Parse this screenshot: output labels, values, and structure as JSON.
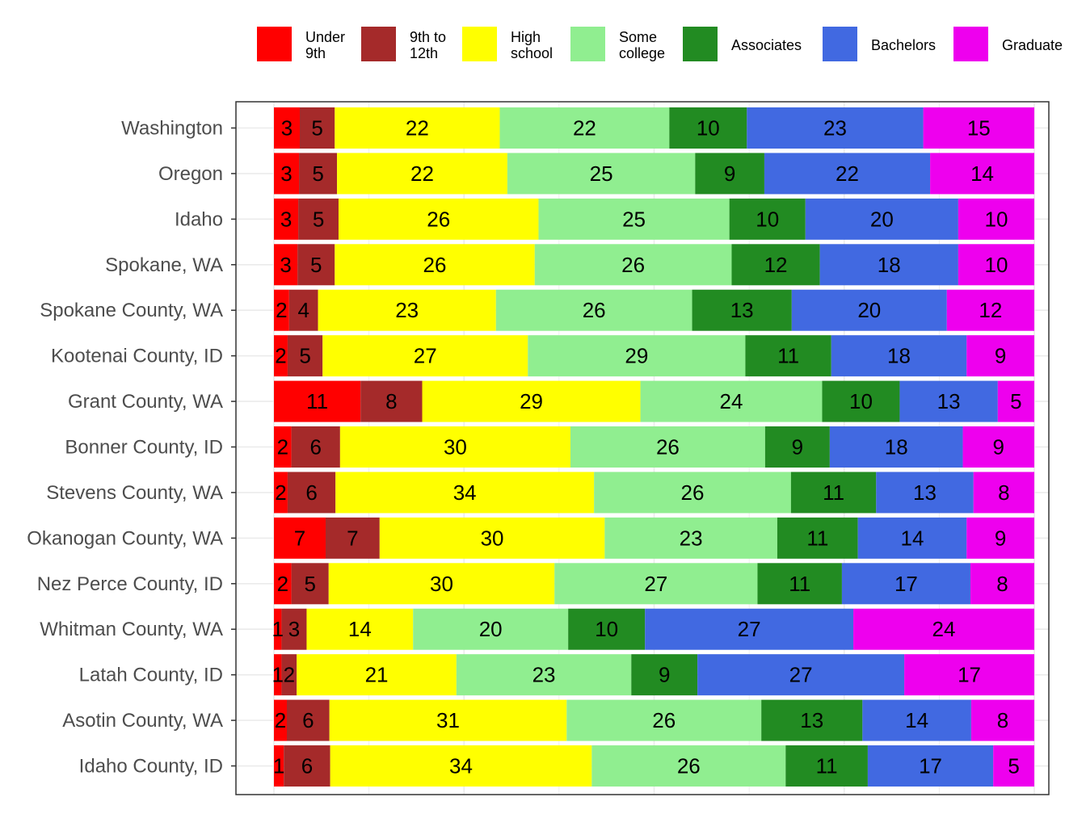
{
  "chart_data": {
    "type": "bar",
    "orientation": "horizontal",
    "stacked": true,
    "normalized": true,
    "title": "",
    "xlabel": "",
    "ylabel": "",
    "xlim": [
      0,
      100
    ],
    "grid": true,
    "legend_position": "top",
    "legend": [
      {
        "key": "under9",
        "label": "Under\n9th",
        "color": "#FF0000"
      },
      {
        "key": "9to12",
        "label": "9th to\n12th",
        "color": "#A52A2A"
      },
      {
        "key": "hs",
        "label": "High\nschool",
        "color": "#FFFF00"
      },
      {
        "key": "somecollege",
        "label": "Some\ncollege",
        "color": "#90EE90"
      },
      {
        "key": "associates",
        "label": "Associates",
        "color": "#228B22"
      },
      {
        "key": "bachelors",
        "label": "Bachelors",
        "color": "#4169E1"
      },
      {
        "key": "graduate",
        "label": "Graduate",
        "color": "#EE00EE"
      }
    ],
    "categories": [
      "Washington",
      "Oregon",
      "Idaho",
      "Spokane, WA",
      "Spokane County, WA",
      "Kootenai County, ID",
      "Grant County, WA",
      "Bonner County, ID",
      "Stevens County, WA",
      "Okanogan County, WA",
      "Nez Perce County, ID",
      "Whitman County, WA",
      "Latah County, ID",
      "Asotin County, WA",
      "Idaho County, ID"
    ],
    "series": [
      {
        "key": "under9",
        "values": [
          3.4,
          3.3,
          3.2,
          3.1,
          2.0,
          1.8,
          11.4,
          2.3,
          1.8,
          6.8,
          2.3,
          1.0,
          1.0,
          1.7,
          1.3
        ]
      },
      {
        "key": "9to12",
        "values": [
          4.6,
          5.0,
          5.3,
          4.9,
          3.8,
          4.6,
          8.1,
          6.4,
          6.3,
          7.1,
          4.9,
          3.3,
          2.0,
          5.6,
          6.1
        ]
      },
      {
        "key": "hs",
        "values": [
          21.7,
          22.4,
          26.3,
          26.3,
          23.4,
          27.0,
          28.7,
          30.3,
          34.0,
          29.6,
          29.7,
          14.0,
          21.0,
          31.2,
          34.4
        ]
      },
      {
        "key": "somecollege",
        "values": [
          22.3,
          24.7,
          25.1,
          25.9,
          25.8,
          28.6,
          23.9,
          25.6,
          25.9,
          22.7,
          26.7,
          20.4,
          23.0,
          25.6,
          25.5
        ]
      },
      {
        "key": "associates",
        "values": [
          10.2,
          9.1,
          10.0,
          11.6,
          13.1,
          11.3,
          10.2,
          8.5,
          11.2,
          10.6,
          11.1,
          10.1,
          8.7,
          13.3,
          10.8
        ]
      },
      {
        "key": "bachelors",
        "values": [
          23.2,
          21.8,
          20.1,
          18.2,
          20.4,
          17.8,
          12.9,
          17.5,
          12.8,
          14.3,
          16.9,
          27.4,
          27.2,
          14.3,
          16.5
        ]
      },
      {
        "key": "graduate",
        "values": [
          14.6,
          13.7,
          10.0,
          10.0,
          11.5,
          8.9,
          4.8,
          9.4,
          8.0,
          8.9,
          8.4,
          23.8,
          17.1,
          8.3,
          5.4
        ]
      }
    ]
  }
}
